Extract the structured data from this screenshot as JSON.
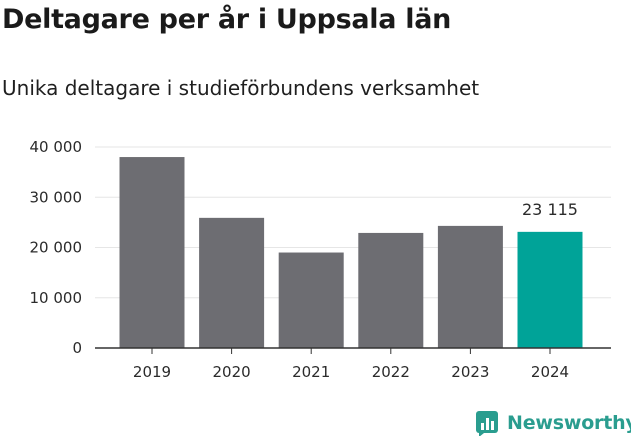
{
  "title": "Deltagare per år i Uppsala län",
  "subtitle": "Unika deltagare i studieförbundens verksamhet",
  "brand": {
    "name": "Newsworthy",
    "color": "#2a9d8f"
  },
  "colors": {
    "bar": "#6d6d72",
    "highlight": "#00a398",
    "gridline": "#e6e6e6",
    "axis": "#333333"
  },
  "chart_data": {
    "type": "bar",
    "categories": [
      "2019",
      "2020",
      "2021",
      "2022",
      "2023",
      "2024"
    ],
    "values": [
      38000,
      25900,
      19000,
      22900,
      24300,
      23115
    ],
    "highlight_index": 5,
    "data_labels": [
      {
        "index": 5,
        "text": "23 115"
      }
    ],
    "yticks": [
      0,
      10000,
      20000,
      30000,
      40000
    ],
    "ytick_labels": [
      "0",
      "10 000",
      "20 000",
      "30 000",
      "40 000"
    ],
    "ylim": [
      0,
      40000
    ],
    "grid": true,
    "legend": "none"
  }
}
